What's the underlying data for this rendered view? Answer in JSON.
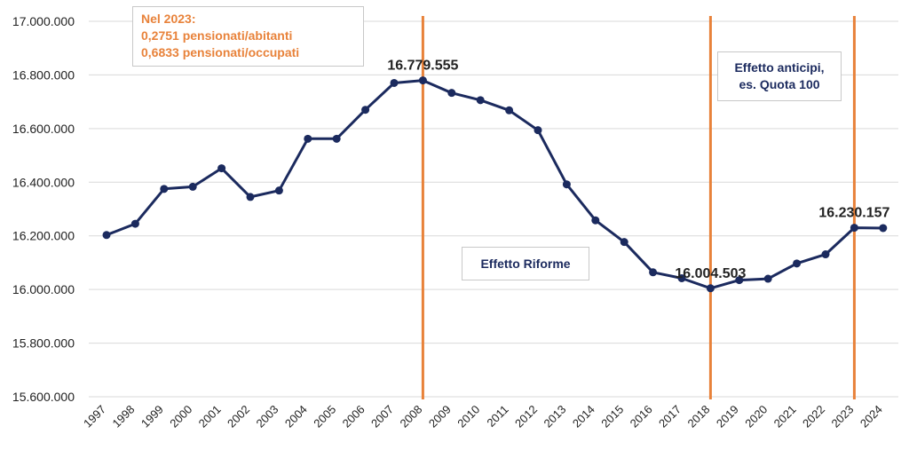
{
  "chart_data": {
    "type": "line",
    "title": "",
    "xlabel": "",
    "ylabel": "",
    "categories": [
      "1997",
      "1998",
      "1999",
      "2000",
      "2001",
      "2002",
      "2003",
      "2004",
      "2005",
      "2006",
      "2007",
      "2008",
      "2009",
      "2010",
      "2011",
      "2012",
      "2013",
      "2014",
      "2015",
      "2016",
      "2017",
      "2018",
      "2019",
      "2020",
      "2021",
      "2022",
      "2023",
      "2024"
    ],
    "series": [
      {
        "values": [
          16203000,
          16245000,
          16375000,
          16383000,
          16452000,
          16345000,
          16369000,
          16562000,
          16562000,
          16670000,
          16770000,
          16779555,
          16733000,
          16706000,
          16668000,
          16594000,
          16392000,
          16258000,
          16177000,
          16064000,
          16042000,
          16004503,
          16035000,
          16040000,
          16097000,
          16131000,
          16230157,
          16229000
        ]
      }
    ],
    "ylim": [
      15600000,
      17000000
    ],
    "yticks": [
      "15.600.000",
      "15.800.000",
      "16.000.000",
      "16.200.000",
      "16.400.000",
      "16.600.000",
      "16.800.000",
      "17.000.000"
    ],
    "grid": "horizontal",
    "line_color": "#1b2a5e",
    "marker_line_color": "#e8823a",
    "vertical_markers": [
      "2008",
      "2018",
      "2023"
    ],
    "data_labels": [
      {
        "category": "2008",
        "text": "16.779.555"
      },
      {
        "category": "2018",
        "text": "16.004.503"
      },
      {
        "category": "2023",
        "text": "16.230.157"
      }
    ],
    "annotations": {
      "note_title": "Nel 2023:",
      "note_line1": "0,2751 pensionati/abitanti",
      "note_line2": "0,6833 pensionati/occupati",
      "riforme": "Effetto Riforme",
      "anticipi_line1": "Effetto anticipi,",
      "anticipi_line2": "es. Quota 100"
    }
  }
}
